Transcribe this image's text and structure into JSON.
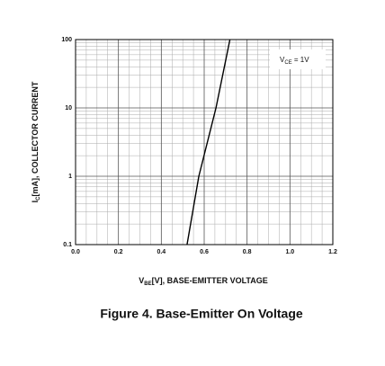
{
  "chart_data": {
    "type": "line",
    "title": "Figure 4. Base-Emitter On Voltage",
    "xlabel": [
      "V",
      "BE",
      "[V], BASE-EMITTER VOLTAGE"
    ],
    "ylabel": [
      "I",
      "C",
      "[mA], COLLECTOR CURRENT"
    ],
    "annotation": [
      "V",
      "CE",
      " = 1V"
    ],
    "x": [
      0.52,
      0.575,
      0.655,
      0.72
    ],
    "series": [
      {
        "color": "#000000",
        "values": [
          0.1,
          1,
          10,
          100
        ]
      }
    ],
    "xlim": [
      0.0,
      1.2
    ],
    "xticks": [
      {
        "value": 0.0,
        "label": "0.0"
      },
      0.2,
      0.4,
      0.6,
      0.8,
      {
        "value": 1.0,
        "label": "1.0"
      },
      1.2
    ],
    "ylim": [
      0.1,
      100
    ],
    "yticks": [
      0.1,
      1,
      10,
      100
    ],
    "ylog": true,
    "grid": true,
    "minor_grid": true
  }
}
